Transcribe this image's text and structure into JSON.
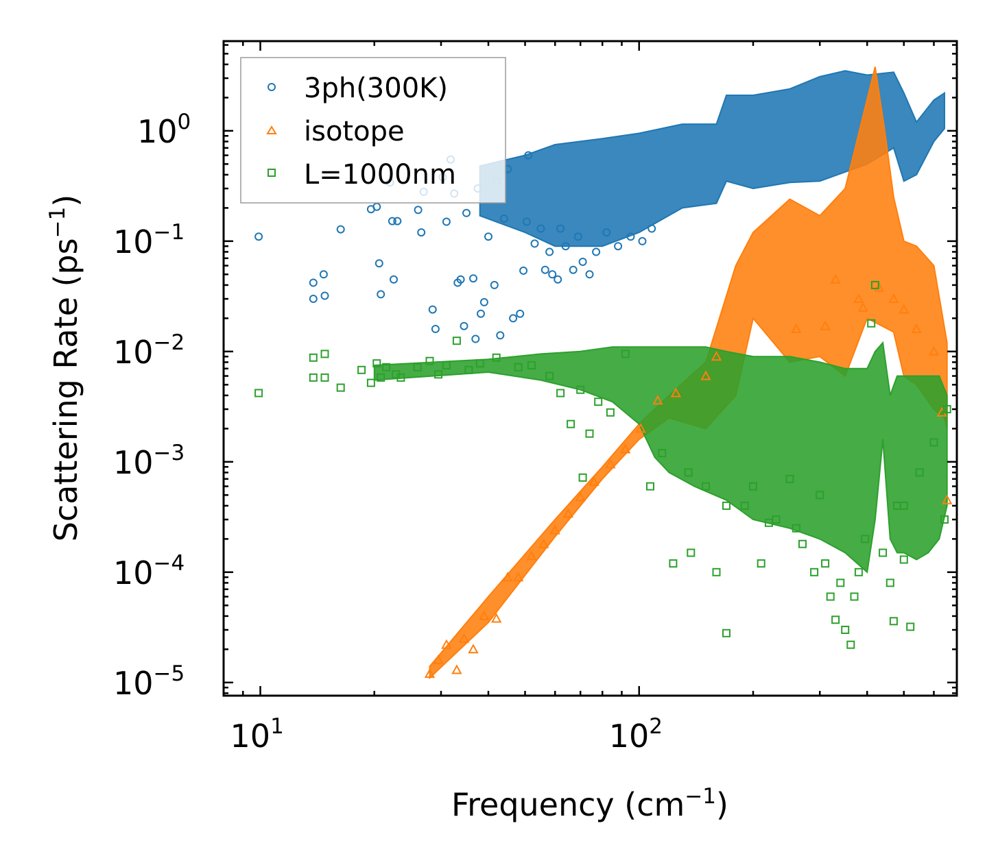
{
  "chart_data": {
    "type": "scatter",
    "title": "",
    "xlabel": "Frequency (cm",
    "xlabel_sup": "−1",
    "xlabel_end": ")",
    "ylabel": "Scattering Rate (ps",
    "ylabel_sup": "−1",
    "ylabel_end": ")",
    "xscale": "log",
    "yscale": "log",
    "xlim": [
      8,
      690
    ],
    "ylim": [
      7.6e-06,
      6.5
    ],
    "xticks": [
      {
        "value": 10,
        "base": "10",
        "exp": "1"
      },
      {
        "value": 100,
        "base": "10",
        "exp": "2"
      }
    ],
    "yticks": [
      {
        "value": 1,
        "base": "10",
        "exp": "0"
      },
      {
        "value": 0.1,
        "base": "10",
        "exp": "−1"
      },
      {
        "value": 0.01,
        "base": "10",
        "exp": "−2"
      },
      {
        "value": 0.001,
        "base": "10",
        "exp": "−3"
      },
      {
        "value": 0.0001,
        "base": "10",
        "exp": "−4"
      },
      {
        "value": 1e-05,
        "base": "10",
        "exp": "−5"
      }
    ],
    "legend_position": "top-left",
    "series": [
      {
        "name": "3ph(300K)",
        "marker": "circle",
        "color": "#1f77b4",
        "points": [
          [
            9.9,
            0.11
          ],
          [
            13.8,
            0.03
          ],
          [
            13.8,
            0.042
          ],
          [
            14.7,
            0.05
          ],
          [
            14.8,
            0.032
          ],
          [
            16.3,
            0.128
          ],
          [
            19.6,
            0.195
          ],
          [
            20.3,
            0.205
          ],
          [
            20.6,
            0.063
          ],
          [
            20.8,
            0.033
          ],
          [
            22.0,
            0.34
          ],
          [
            22.3,
            0.152
          ],
          [
            22.5,
            0.045
          ],
          [
            23.0,
            0.152
          ],
          [
            26.1,
            0.192
          ],
          [
            26.6,
            0.12
          ],
          [
            27.0,
            0.28
          ],
          [
            28.5,
            0.024
          ],
          [
            29.0,
            0.016
          ],
          [
            30.3,
            0.38
          ],
          [
            31.0,
            0.15
          ],
          [
            31.8,
            0.55
          ],
          [
            32.5,
            0.27
          ],
          [
            33.2,
            0.042
          ],
          [
            33.8,
            0.045
          ],
          [
            34.5,
            0.017
          ],
          [
            35.0,
            0.18
          ],
          [
            36.5,
            0.046
          ],
          [
            37.0,
            0.013
          ],
          [
            37.5,
            0.3
          ],
          [
            38.2,
            0.022
          ],
          [
            39.0,
            0.028
          ],
          [
            40.0,
            0.11
          ],
          [
            41.5,
            0.04
          ],
          [
            42.0,
            0.35
          ],
          [
            43.0,
            0.014
          ],
          [
            44.0,
            0.16
          ],
          [
            45.0,
            0.45
          ],
          [
            46.5,
            0.02
          ],
          [
            48.5,
            0.022
          ],
          [
            49.5,
            0.054
          ],
          [
            50.5,
            0.15
          ],
          [
            51.0,
            0.6
          ],
          [
            53.0,
            0.095
          ],
          [
            55.0,
            0.13
          ],
          [
            56.5,
            0.055
          ],
          [
            58.0,
            0.08
          ],
          [
            59.0,
            0.05
          ],
          [
            61.0,
            0.045
          ],
          [
            62.0,
            0.13
          ],
          [
            64.0,
            0.09
          ],
          [
            67.0,
            0.055
          ],
          [
            69.0,
            0.11
          ],
          [
            71.0,
            0.065
          ],
          [
            74.0,
            0.05
          ],
          [
            77.0,
            0.08
          ],
          [
            82.0,
            0.12
          ],
          [
            88.0,
            0.09
          ],
          [
            95.0,
            0.11
          ],
          [
            102.0,
            0.1
          ],
          [
            108.0,
            0.13
          ]
        ],
        "band_lower": [
          [
            38,
            0.17
          ],
          [
            50,
            0.12
          ],
          [
            60,
            0.09
          ],
          [
            80,
            0.09
          ],
          [
            100,
            0.12
          ],
          [
            130,
            0.2
          ],
          [
            160,
            0.22
          ],
          [
            170,
            0.35
          ],
          [
            200,
            0.3
          ],
          [
            250,
            0.34
          ],
          [
            300,
            0.35
          ],
          [
            400,
            0.5
          ],
          [
            470,
            0.7
          ],
          [
            500,
            0.35
          ],
          [
            540,
            0.4
          ],
          [
            600,
            0.8
          ],
          [
            640,
            1.05
          ]
        ],
        "band_upper": [
          [
            38,
            0.48
          ],
          [
            50,
            0.6
          ],
          [
            60,
            0.75
          ],
          [
            80,
            0.85
          ],
          [
            100,
            0.95
          ],
          [
            130,
            1.15
          ],
          [
            160,
            1.15
          ],
          [
            170,
            2.1
          ],
          [
            200,
            2.1
          ],
          [
            250,
            2.4
          ],
          [
            300,
            3.1
          ],
          [
            350,
            3.5
          ],
          [
            400,
            3.2
          ],
          [
            470,
            3.4
          ],
          [
            500,
            2.2
          ],
          [
            540,
            1.2
          ],
          [
            600,
            1.9
          ],
          [
            640,
            2.2
          ]
        ]
      },
      {
        "name": "isotope",
        "marker": "triangle",
        "color": "#ff7f0e",
        "points": [
          [
            28.0,
            1.2e-05
          ],
          [
            29.5,
            1.6e-05
          ],
          [
            31.0,
            2.2e-05
          ],
          [
            33.0,
            1.3e-05
          ],
          [
            34.5,
            2.5e-05
          ],
          [
            36.5,
            2e-05
          ],
          [
            39.0,
            4e-05
          ],
          [
            42.0,
            3.8e-05
          ],
          [
            45.0,
            9e-05
          ],
          [
            48.0,
            9e-05
          ],
          [
            52.0,
            0.00014
          ],
          [
            56.0,
            0.00018
          ],
          [
            60.0,
            0.00024
          ],
          [
            65.0,
            0.00034
          ],
          [
            70.0,
            0.00048
          ],
          [
            76.0,
            0.00066
          ],
          [
            84.0,
            0.00095
          ],
          [
            92.0,
            0.0013
          ],
          [
            101.0,
            0.002
          ],
          [
            112.0,
            0.0036
          ],
          [
            125.0,
            0.0042
          ],
          [
            150.0,
            0.006
          ],
          [
            160.0,
            0.009
          ],
          [
            260.0,
            0.016
          ],
          [
            310.0,
            0.017
          ],
          [
            330.0,
            0.045
          ],
          [
            380.0,
            0.03
          ],
          [
            390.0,
            0.025
          ],
          [
            430.0,
            0.038
          ],
          [
            470.0,
            0.03
          ],
          [
            500.0,
            0.024
          ],
          [
            540.0,
            0.016
          ],
          [
            600.0,
            0.01
          ],
          [
            630.0,
            0.0028
          ],
          [
            650.0,
            0.00045
          ]
        ],
        "band_lower": [
          [
            28,
            1.1e-05
          ],
          [
            40,
            3.5e-05
          ],
          [
            60,
            0.00021
          ],
          [
            80,
            0.0007
          ],
          [
            100,
            0.0016
          ],
          [
            120,
            0.0025
          ],
          [
            150,
            0.002
          ],
          [
            180,
            0.004
          ],
          [
            200,
            0.02
          ],
          [
            250,
            0.008
          ],
          [
            300,
            0.009
          ],
          [
            350,
            0.006
          ],
          [
            400,
            0.02
          ],
          [
            470,
            0.015
          ],
          [
            500,
            0.006
          ],
          [
            540,
            0.005
          ],
          [
            600,
            0.003
          ],
          [
            640,
            0.0025
          ],
          [
            650,
            0.002
          ]
        ],
        "band_upper": [
          [
            28,
            1.4e-05
          ],
          [
            40,
            6e-05
          ],
          [
            60,
            0.0003
          ],
          [
            80,
            0.0009
          ],
          [
            100,
            0.0022
          ],
          [
            120,
            0.004
          ],
          [
            150,
            0.008
          ],
          [
            180,
            0.06
          ],
          [
            200,
            0.12
          ],
          [
            250,
            0.24
          ],
          [
            300,
            0.17
          ],
          [
            350,
            0.3
          ],
          [
            420,
            3.8
          ],
          [
            445,
            1.0
          ],
          [
            470,
            0.25
          ],
          [
            500,
            0.1
          ],
          [
            540,
            0.09
          ],
          [
            600,
            0.06
          ],
          [
            650,
            0.012
          ]
        ]
      },
      {
        "name": "L=1000nm",
        "marker": "square",
        "color": "#2ca02c",
        "points": [
          [
            9.9,
            0.0042
          ],
          [
            13.8,
            0.0058
          ],
          [
            13.8,
            0.0088
          ],
          [
            14.8,
            0.0058
          ],
          [
            14.8,
            0.0095
          ],
          [
            16.3,
            0.0047
          ],
          [
            18.5,
            0.0068
          ],
          [
            19.6,
            0.0052
          ],
          [
            20.3,
            0.0078
          ],
          [
            20.8,
            0.0058
          ],
          [
            21.5,
            0.0072
          ],
          [
            22.8,
            0.0062
          ],
          [
            23.5,
            0.0058
          ],
          [
            26.0,
            0.0072
          ],
          [
            28.0,
            0.0082
          ],
          [
            29.5,
            0.0062
          ],
          [
            31.0,
            0.0075
          ],
          [
            33.0,
            0.0125
          ],
          [
            35.5,
            0.0068
          ],
          [
            38.0,
            0.0078
          ],
          [
            42.0,
            0.0088
          ],
          [
            48.0,
            0.0072
          ],
          [
            52.0,
            0.0075
          ],
          [
            58.0,
            0.006
          ],
          [
            62.0,
            0.0042
          ],
          [
            66.0,
            0.0022
          ],
          [
            70.0,
            0.0045
          ],
          [
            71.0,
            0.00072
          ],
          [
            74.0,
            0.0018
          ],
          [
            78.0,
            0.0035
          ],
          [
            84.0,
            0.0028
          ],
          [
            92.0,
            0.0095
          ],
          [
            107.0,
            0.0006
          ],
          [
            115.0,
            0.0012
          ],
          [
            123.0,
            0.00012
          ],
          [
            135.0,
            0.0008
          ],
          [
            137.0,
            0.00015
          ],
          [
            150.0,
            0.0006
          ],
          [
            160.0,
            0.0001
          ],
          [
            170.0,
            2.8e-05
          ],
          [
            190.0,
            0.0004
          ],
          [
            210.0,
            0.00012
          ],
          [
            220.0,
            0.00028
          ],
          [
            250.0,
            0.0007
          ],
          [
            270.0,
            0.00018
          ],
          [
            290.0,
            0.0001
          ],
          [
            300.0,
            0.0005
          ],
          [
            320.0,
            6e-05
          ],
          [
            330.0,
            3.7e-05
          ],
          [
            340.0,
            8e-05
          ],
          [
            350.0,
            3e-05
          ],
          [
            362.0,
            2.2e-05
          ],
          [
            380.0,
            0.0001
          ],
          [
            395.0,
            0.0002
          ],
          [
            410.0,
            0.018
          ],
          [
            420.0,
            0.04
          ],
          [
            440.0,
            0.00015
          ],
          [
            460.0,
            8e-05
          ],
          [
            470.0,
            3.6e-05
          ],
          [
            480.0,
            0.0004
          ],
          [
            500.0,
            0.00013
          ],
          [
            520.0,
            3.2e-05
          ],
          [
            550.0,
            0.0008
          ],
          [
            600.0,
            0.0015
          ],
          [
            640.0,
            0.0003
          ],
          [
            650.0,
            0.003
          ],
          [
            170.0,
            0.0004
          ],
          [
            200.0,
            0.0006
          ],
          [
            230.0,
            0.0003
          ],
          [
            260.0,
            0.00025
          ],
          [
            310.0,
            0.00012
          ],
          [
            370.0,
            6e-05
          ],
          [
            500.0,
            0.0004
          ]
        ],
        "band_lower": [
          [
            20,
            0.0055
          ],
          [
            40,
            0.0065
          ],
          [
            55,
            0.0055
          ],
          [
            70,
            0.0045
          ],
          [
            85,
            0.0035
          ],
          [
            100,
            0.0022
          ],
          [
            110,
            0.0011
          ],
          [
            120,
            0.0008
          ],
          [
            140,
            0.0006
          ],
          [
            170,
            0.00045
          ],
          [
            200,
            0.0003
          ],
          [
            250,
            0.00025
          ],
          [
            300,
            0.0002
          ],
          [
            350,
            0.00015
          ],
          [
            400,
            0.0001
          ],
          [
            420,
            0.0003
          ],
          [
            440,
            0.0016
          ],
          [
            460,
            0.0002
          ],
          [
            480,
            0.00015
          ],
          [
            500,
            0.00015
          ],
          [
            540,
            0.00013
          ],
          [
            580,
            0.00015
          ],
          [
            620,
            0.0002
          ],
          [
            650,
            0.0004
          ]
        ],
        "band_upper": [
          [
            20,
            0.0075
          ],
          [
            40,
            0.0085
          ],
          [
            55,
            0.0095
          ],
          [
            70,
            0.01
          ],
          [
            85,
            0.011
          ],
          [
            100,
            0.011
          ],
          [
            120,
            0.011
          ],
          [
            150,
            0.011
          ],
          [
            170,
            0.01
          ],
          [
            200,
            0.009
          ],
          [
            250,
            0.009
          ],
          [
            300,
            0.008
          ],
          [
            350,
            0.007
          ],
          [
            400,
            0.007
          ],
          [
            420,
            0.01
          ],
          [
            440,
            0.012
          ],
          [
            460,
            0.004
          ],
          [
            480,
            0.006
          ],
          [
            500,
            0.006
          ],
          [
            540,
            0.006
          ],
          [
            580,
            0.006
          ],
          [
            620,
            0.006
          ],
          [
            650,
            0.004
          ]
        ]
      }
    ]
  }
}
